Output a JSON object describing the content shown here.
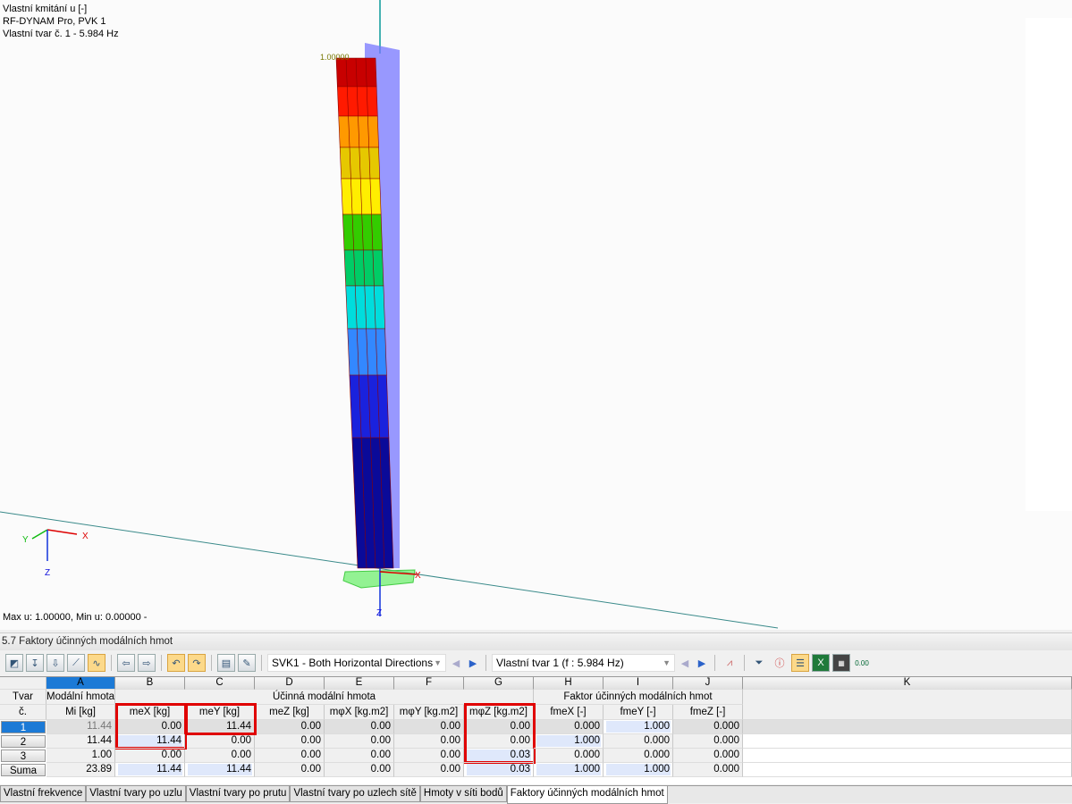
{
  "viewport": {
    "info_lines": [
      "Vlastní kmitání u [-]",
      "RF-DYNAM Pro, PVK 1",
      "Vlastní tvar č. 1 - 5.984 Hz"
    ],
    "max_label": "1.00000",
    "status": "Max u: 1.00000, Min u: 0.00000 -",
    "axes": {
      "x": "X",
      "y": "Y",
      "z": "Z"
    },
    "band_colors": [
      "#c80000",
      "#ff1a00",
      "#ff9900",
      "#e6c800",
      "#ffee00",
      "#33cc00",
      "#00cc66",
      "#00dddd",
      "#3388ff",
      "#1a22dd",
      "#0a0a99"
    ]
  },
  "panel": {
    "title": "5.7 Faktory účinných modálních hmot"
  },
  "toolbar": {
    "load_case": "SVK1 - Both Horizontal Directions",
    "mode_shape": "Vlastní tvar 1 (f : 5.984 Hz)",
    "icons": [
      "graphic-icon",
      "insert-row-icon",
      "move-down-icon",
      "chart-icon",
      "results-icon",
      "prev-table-icon",
      "next-table-icon",
      "undo-view-icon",
      "redo-view-icon",
      "table-view-icon",
      "edit-icon",
      "filter-icon",
      "info-icon",
      "color-bar-icon",
      "excel-icon",
      "decimal-icon",
      "number-format-icon"
    ]
  },
  "table": {
    "columns": [
      "A",
      "B",
      "C",
      "D",
      "E",
      "F",
      "G",
      "H",
      "I",
      "J",
      "K"
    ],
    "row_header_title": [
      "Tvar",
      "č."
    ],
    "group_headers": {
      "a": "Modální hmota",
      "effective": "Účinná modální hmota",
      "factor": "Faktor účinných modálních hmot"
    },
    "sub_headers": [
      "Mi [kg]",
      "meX [kg]",
      "meY [kg]",
      "meZ [kg]",
      "mφX [kg.m2]",
      "mφY [kg.m2]",
      "mφZ [kg.m2]",
      "fmeX [-]",
      "fmeY [-]",
      "fmeZ [-]"
    ],
    "rows": [
      {
        "label": "1",
        "cells": [
          "11.44",
          "0.00",
          "11.44",
          "0.00",
          "0.00",
          "0.00",
          "0.00",
          "0.000",
          "1.000",
          "0.000"
        ]
      },
      {
        "label": "2",
        "cells": [
          "11.44",
          "11.44",
          "0.00",
          "0.00",
          "0.00",
          "0.00",
          "0.00",
          "1.000",
          "0.000",
          "0.000"
        ]
      },
      {
        "label": "3",
        "cells": [
          "1.00",
          "0.00",
          "0.00",
          "0.00",
          "0.00",
          "0.00",
          "0.03",
          "0.000",
          "0.000",
          "0.000"
        ]
      },
      {
        "label": "Suma",
        "cells": [
          "23.89",
          "11.44",
          "11.44",
          "0.00",
          "0.00",
          "0.00",
          "0.03",
          "1.000",
          "1.000",
          "0.000"
        ]
      }
    ]
  },
  "tabs": [
    "Vlastní frekvence",
    "Vlastní tvary po uzlu",
    "Vlastní tvary po prutu",
    "Vlastní tvary po uzlech sítě",
    "Hmoty v síti bodů",
    "Faktory účinných modálních hmot"
  ],
  "active_tab": 5
}
